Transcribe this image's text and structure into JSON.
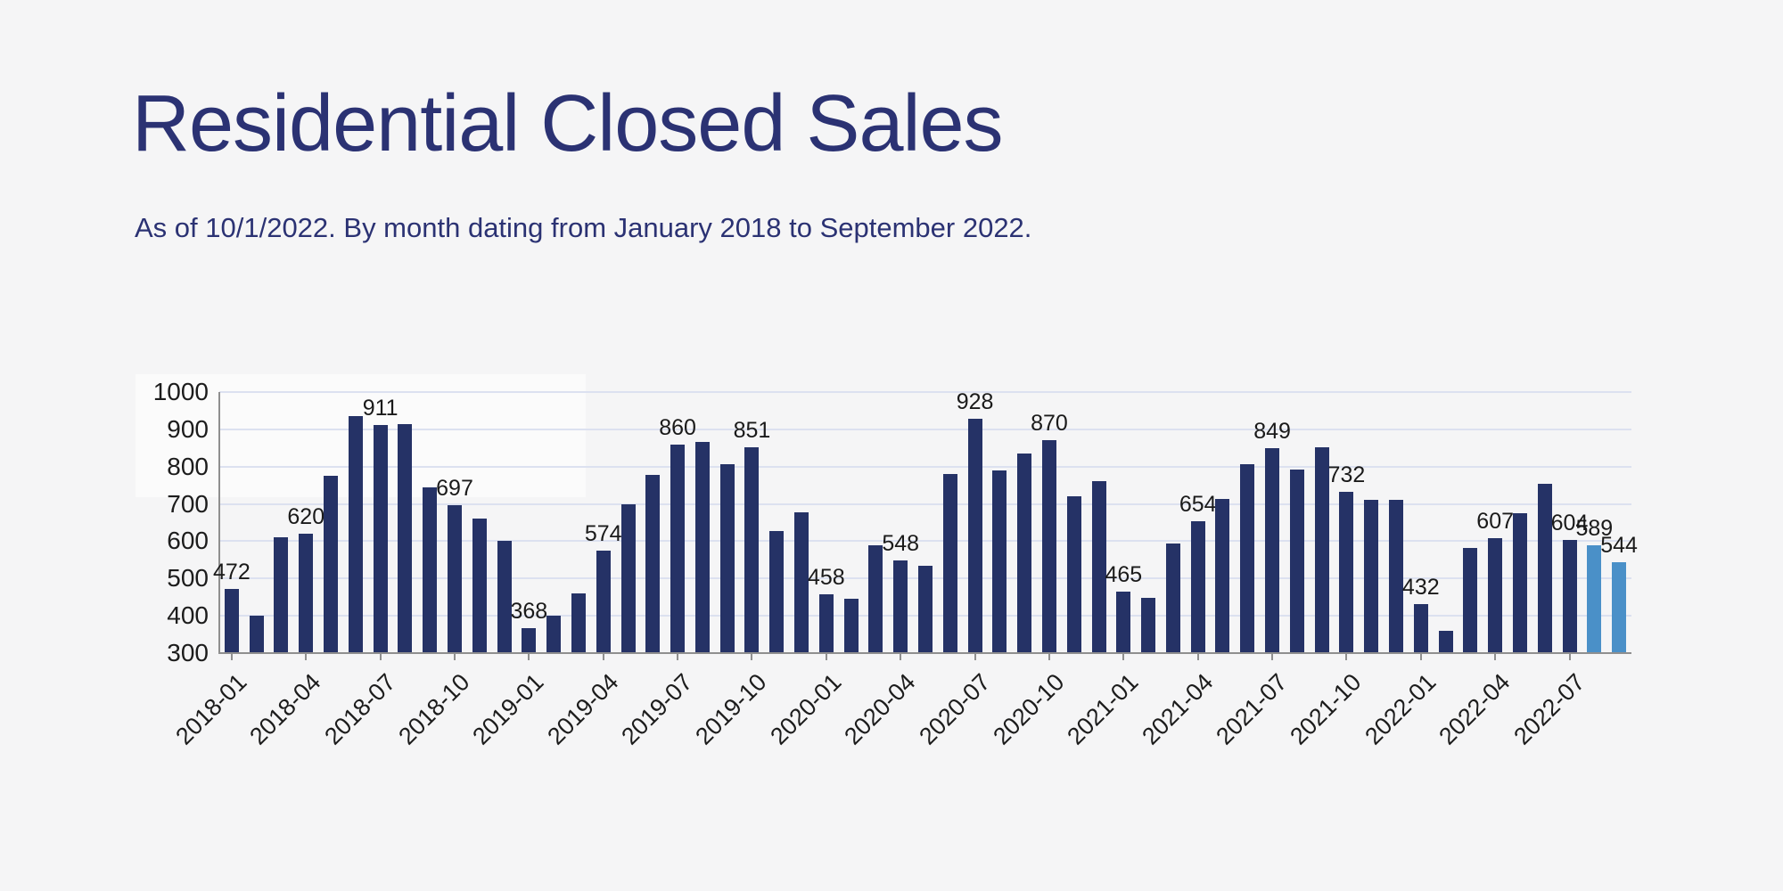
{
  "title": "Residential Closed Sales",
  "subtitle": "As of 10/1/2022. By month dating from January 2018 to September 2022.",
  "theme": {
    "background": "#f5f5f6",
    "title_color": "#2b3273",
    "bar_color": "#253266",
    "highlight_color": "#4a90c8",
    "gridline_color": "#dce1f0",
    "axis_color": "#8f8f8f",
    "label_color": "#1c1c1c"
  },
  "chart_data": {
    "type": "bar",
    "title": "Residential Closed Sales",
    "subtitle": "As of 10/1/2022. By month dating from January 2018 to September 2022.",
    "xlabel": "",
    "ylabel": "",
    "ylim": [
      300,
      1000
    ],
    "y_ticks": [
      1000,
      900,
      800,
      700,
      600,
      500,
      400,
      300
    ],
    "grid": true,
    "legend": false,
    "categories": [
      "2018-01",
      "2018-02",
      "2018-03",
      "2018-04",
      "2018-05",
      "2018-06",
      "2018-07",
      "2018-08",
      "2018-09",
      "2018-10",
      "2018-11",
      "2018-12",
      "2019-01",
      "2019-02",
      "2019-03",
      "2019-04",
      "2019-05",
      "2019-06",
      "2019-07",
      "2019-08",
      "2019-09",
      "2019-10",
      "2019-11",
      "2019-12",
      "2020-01",
      "2020-02",
      "2020-03",
      "2020-04",
      "2020-05",
      "2020-06",
      "2020-07",
      "2020-08",
      "2020-09",
      "2020-10",
      "2020-11",
      "2020-12",
      "2021-01",
      "2021-02",
      "2021-03",
      "2021-04",
      "2021-05",
      "2021-06",
      "2021-07",
      "2021-08",
      "2021-09",
      "2021-10",
      "2021-11",
      "2021-12",
      "2022-01",
      "2022-02",
      "2022-03",
      "2022-04",
      "2022-05",
      "2022-06",
      "2022-07",
      "2022-08",
      "2022-09"
    ],
    "values": [
      472,
      400,
      610,
      620,
      775,
      935,
      911,
      913,
      745,
      697,
      660,
      600,
      368,
      400,
      460,
      574,
      698,
      778,
      860,
      866,
      806,
      851,
      627,
      677,
      458,
      445,
      590,
      548,
      535,
      780,
      928,
      790,
      835,
      870,
      721,
      760,
      465,
      447,
      595,
      654,
      713,
      806,
      849,
      793,
      851,
      732,
      712,
      712,
      432,
      360,
      582,
      607,
      676,
      755,
      604,
      589,
      544
    ],
    "labeled_indices": [
      0,
      3,
      6,
      9,
      12,
      15,
      18,
      21,
      24,
      27,
      30,
      33,
      36,
      39,
      42,
      45,
      48,
      51,
      54,
      55,
      56
    ],
    "x_tick_indices": [
      0,
      3,
      6,
      9,
      12,
      15,
      18,
      21,
      24,
      27,
      30,
      33,
      36,
      39,
      42,
      45,
      48,
      51,
      54
    ],
    "highlight_indices": [
      55,
      56
    ]
  }
}
